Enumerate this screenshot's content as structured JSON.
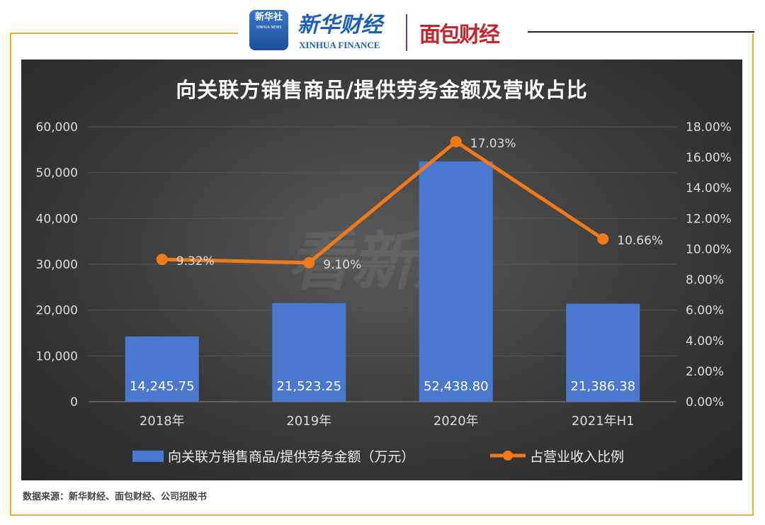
{
  "header": {
    "logo_xinhua_agency": "新华社",
    "logo_xinhua_agency_sub": "XINHUA NEWS",
    "logo_xinhua_finance": "新华财经",
    "logo_xinhua_finance_sub": "XINHUA FINANCE",
    "logo_mianbao": "面包财经"
  },
  "source": "数据来源：新华财经、面包财经、公司招股书",
  "colors": {
    "bar": "#4a78d0",
    "line": "#f07a1a",
    "background": "#3a3a3a",
    "frame": "#e8b22a"
  },
  "chart_data": {
    "type": "bar+line",
    "title": "向关联方销售商品/提供劳务金额及营收占比",
    "categories": [
      "2018年",
      "2019年",
      "2020年",
      "2021年H1"
    ],
    "series": [
      {
        "name": "向关联方销售商品/提供劳务金额（万元）",
        "type": "bar",
        "axis": "left",
        "values": [
          14245.75,
          21523.25,
          52438.8,
          21386.38
        ],
        "labels": [
          "14,245.75",
          "21,523.25",
          "52,438.80",
          "21,386.38"
        ]
      },
      {
        "name": "占营业收入比例",
        "type": "line",
        "axis": "right",
        "values": [
          9.32,
          9.1,
          17.03,
          10.66
        ],
        "labels": [
          "9.32%",
          "9.10%",
          "17.03%",
          "10.66%"
        ]
      }
    ],
    "yleft": {
      "range": [
        0,
        60000
      ],
      "ticks": [
        "0",
        "10,000",
        "20,000",
        "30,000",
        "40,000",
        "50,000",
        "60,000"
      ]
    },
    "yright": {
      "range": [
        0,
        18
      ],
      "ticks": [
        "0.00%",
        "2.00%",
        "4.00%",
        "6.00%",
        "8.00%",
        "10.00%",
        "12.00%",
        "14.00%",
        "16.00%",
        "18.00%"
      ]
    },
    "grid": true,
    "legend": "bottom",
    "watermark": "看新股"
  }
}
